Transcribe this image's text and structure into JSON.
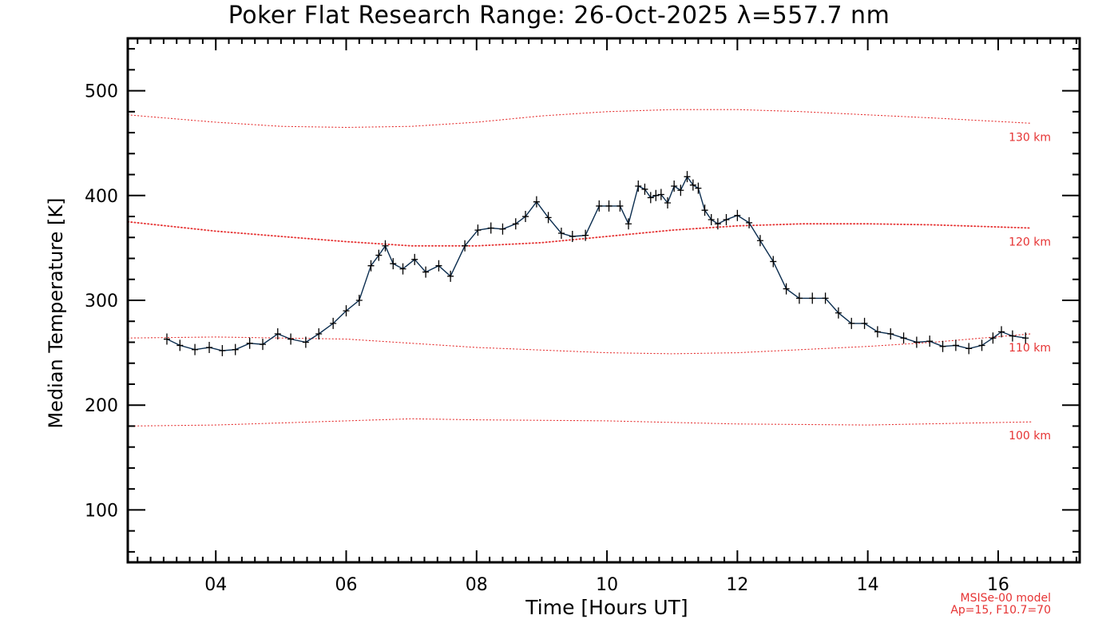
{
  "chart_data": {
    "type": "line",
    "title": "Poker Flat Research Range: 26-Oct-2025 λ=557.7 nm",
    "xlabel": "Time [Hours UT]",
    "ylabel": "Median Temperature [K]",
    "xlim": [
      2.65,
      17.25
    ],
    "ylim": [
      50,
      550
    ],
    "x_ticks": [
      4,
      6,
      8,
      10,
      12,
      14,
      16
    ],
    "x_tick_labels": [
      "04",
      "06",
      "08",
      "10",
      "12",
      "14",
      "16"
    ],
    "y_ticks": [
      100,
      200,
      300,
      400,
      500
    ],
    "y_tick_labels": [
      "100",
      "200",
      "300",
      "400",
      "500"
    ],
    "series": [
      {
        "name": "Median Temperature",
        "color": "#0b2d4f",
        "marker": "plus",
        "x": [
          3.25,
          3.45,
          3.68,
          3.9,
          4.1,
          4.3,
          4.52,
          4.72,
          4.95,
          5.15,
          5.38,
          5.58,
          5.8,
          6.0,
          6.2,
          6.38,
          6.5,
          6.6,
          6.72,
          6.87,
          7.05,
          7.22,
          7.42,
          7.6,
          7.82,
          8.02,
          8.22,
          8.4,
          8.6,
          8.75,
          8.92,
          9.1,
          9.3,
          9.47,
          9.67,
          9.88,
          10.03,
          10.2,
          10.33,
          10.48,
          10.58,
          10.67,
          10.75,
          10.83,
          10.93,
          11.03,
          11.13,
          11.23,
          11.32,
          11.4,
          11.5,
          11.6,
          11.7,
          11.83,
          12.0,
          12.18,
          12.35,
          12.55,
          12.75,
          12.95,
          13.15,
          13.35,
          13.55,
          13.75,
          13.95,
          14.15,
          14.35,
          14.55,
          14.75,
          14.95,
          15.15,
          15.35,
          15.55,
          15.75,
          15.92,
          16.05,
          16.22,
          16.42
        ],
        "y": [
          263,
          257,
          253,
          255,
          252,
          253,
          259,
          258,
          268,
          263,
          260,
          268,
          278,
          290,
          300,
          333,
          343,
          352,
          335,
          330,
          339,
          327,
          333,
          323,
          352,
          367,
          369,
          368,
          373,
          380,
          394,
          379,
          364,
          361,
          362,
          390,
          390,
          390,
          373,
          409,
          406,
          398,
          400,
          401,
          393,
          409,
          405,
          418,
          410,
          407,
          386,
          377,
          373,
          377,
          381,
          374,
          357,
          337,
          311,
          302,
          302,
          302,
          288,
          278,
          278,
          270,
          268,
          264,
          260,
          261,
          256,
          257,
          254,
          257,
          264,
          270,
          266,
          264
        ]
      }
    ],
    "model_curves": [
      {
        "label": "100 km",
        "x": [
          2.65,
          4,
          6,
          7,
          8,
          10,
          12,
          14,
          16.5
        ],
        "y": [
          180,
          181,
          185,
          187,
          186,
          185,
          182,
          181,
          184
        ]
      },
      {
        "label": "110 km",
        "x": [
          2.65,
          4,
          6,
          8,
          10,
          11,
          12,
          14,
          15,
          16.5
        ],
        "y": [
          264,
          265,
          263,
          255,
          250,
          249,
          250,
          256,
          260,
          268
        ]
      },
      {
        "label": "120 km",
        "x": [
          2.65,
          4,
          5,
          6,
          7,
          8,
          9,
          10,
          11,
          12,
          13,
          14,
          15,
          16.5
        ],
        "y": [
          375,
          366,
          361,
          356,
          352,
          352,
          355,
          361,
          367,
          371,
          373,
          373,
          372,
          369
        ]
      },
      {
        "label": "130 km",
        "x": [
          2.65,
          4,
          5,
          6,
          7,
          8,
          9,
          10,
          11,
          12,
          13,
          14,
          15,
          16.5
        ],
        "y": [
          477,
          470,
          466,
          465,
          466,
          470,
          476,
          480,
          482,
          482,
          480,
          477,
          474,
          469
        ]
      }
    ],
    "model_colors": [
      "#e63333"
    ],
    "model_note_line1": "MSISe-00 model",
    "model_note_line2": "Ap=15, F10.7=70"
  }
}
